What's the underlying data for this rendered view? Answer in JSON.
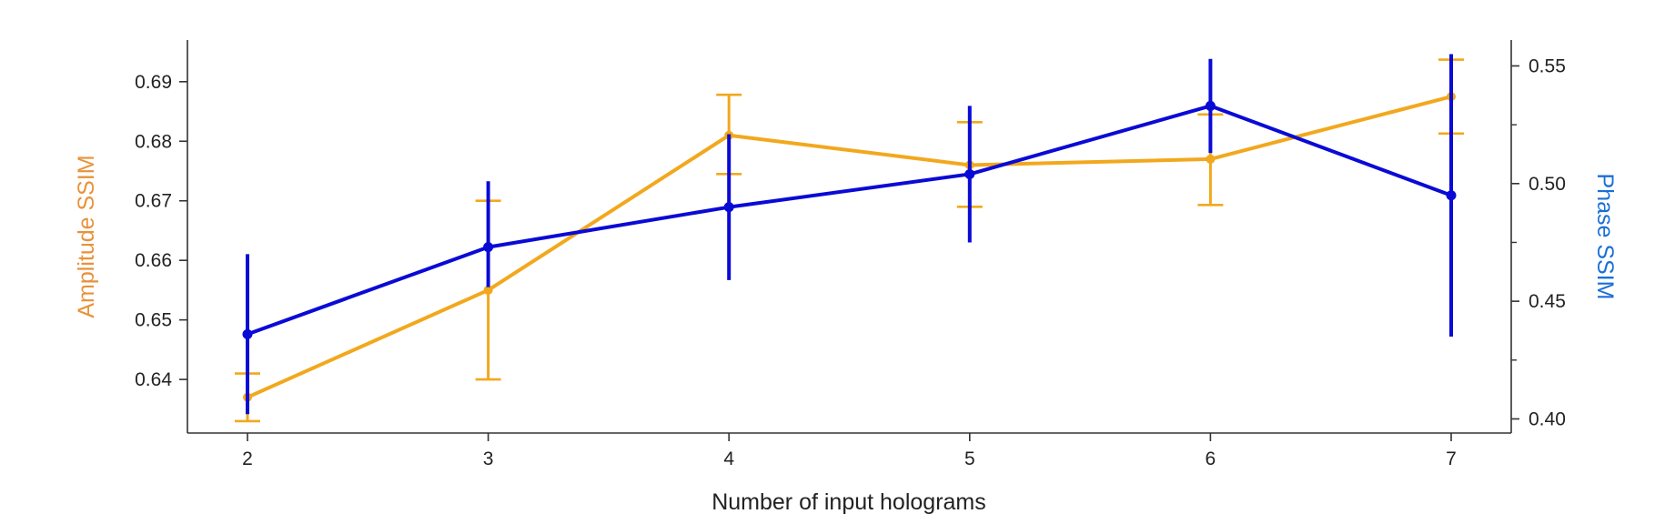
{
  "chart_data": {
    "type": "line",
    "xlabel": "Number of input holograms",
    "ylabel_left": "Amplitude SSIM",
    "ylabel_right": "Phase SSIM",
    "x": [
      2,
      3,
      4,
      5,
      6,
      7
    ],
    "xlim": [
      1.75,
      7.25
    ],
    "ylim_left": [
      0.631,
      0.697
    ],
    "ylim_right": [
      0.394,
      0.561
    ],
    "yticks_left": [
      0.64,
      0.65,
      0.66,
      0.67,
      0.68,
      0.69
    ],
    "yticks_right": [
      0.4,
      0.45,
      0.5,
      0.55
    ],
    "yticks_right_minor": [
      0.425,
      0.475,
      0.525
    ],
    "colors": {
      "amplitude": "#f2a81d",
      "phase": "#0a0ad6",
      "left_label": "#e8923a",
      "right_label": "#1a6fd6",
      "axis": "#333333"
    },
    "series": [
      {
        "axis": "left",
        "values": [
          0.637,
          0.655,
          0.681,
          0.676,
          0.677,
          0.6875
        ],
        "err_low": [
          0.633,
          0.64,
          0.6745,
          0.669,
          0.6693,
          0.6813
        ],
        "err_high": [
          0.641,
          0.67,
          0.6878,
          0.6832,
          0.6845,
          0.6937
        ]
      },
      {
        "axis": "right",
        "values": [
          0.436,
          0.473,
          0.49,
          0.504,
          0.533,
          0.495
        ],
        "err_low": [
          0.402,
          0.456,
          0.459,
          0.475,
          0.513,
          0.435
        ],
        "err_high": [
          0.47,
          0.501,
          0.521,
          0.533,
          0.553,
          0.555
        ]
      }
    ]
  }
}
